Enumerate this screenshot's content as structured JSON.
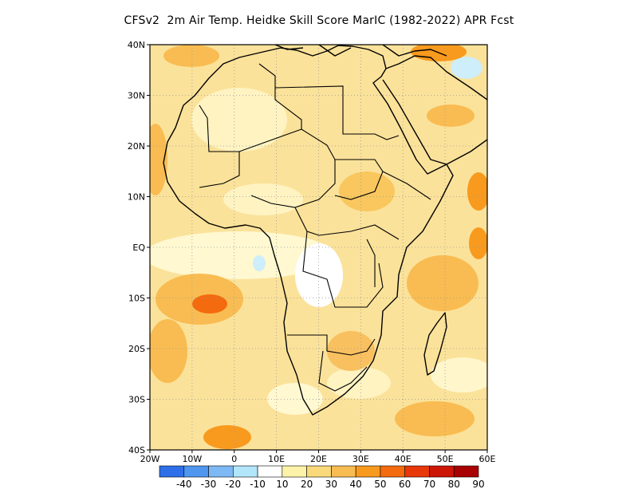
{
  "title": "CFSv2  2m Air Temp. Heidke Skill Score MarIC (1982-2022) APR Fcst",
  "map": {
    "lon_range": [
      -20,
      60
    ],
    "lat_range": [
      -40,
      40
    ],
    "lat_labels": [
      "40N",
      "30N",
      "20N",
      "10N",
      "EQ",
      "10S",
      "20S",
      "30S",
      "40S"
    ],
    "lon_labels": [
      "20W",
      "10W",
      "0",
      "10E",
      "20E",
      "30E",
      "40E",
      "50E",
      "60E"
    ],
    "grid": true
  },
  "colorbar": {
    "labels": [
      "-40",
      "-30",
      "-20",
      "-10",
      "10",
      "20",
      "30",
      "40",
      "50",
      "60",
      "70",
      "80",
      "90"
    ],
    "colors": [
      "#2d6fe8",
      "#4f96ef",
      "#7db9f4",
      "#b2e6fa",
      "#ffffff",
      "#fcf3a8",
      "#fad97a",
      "#f9bc52",
      "#f89a1e",
      "#f46a0e",
      "#e83708",
      "#cc1606",
      "#a80202"
    ]
  }
}
